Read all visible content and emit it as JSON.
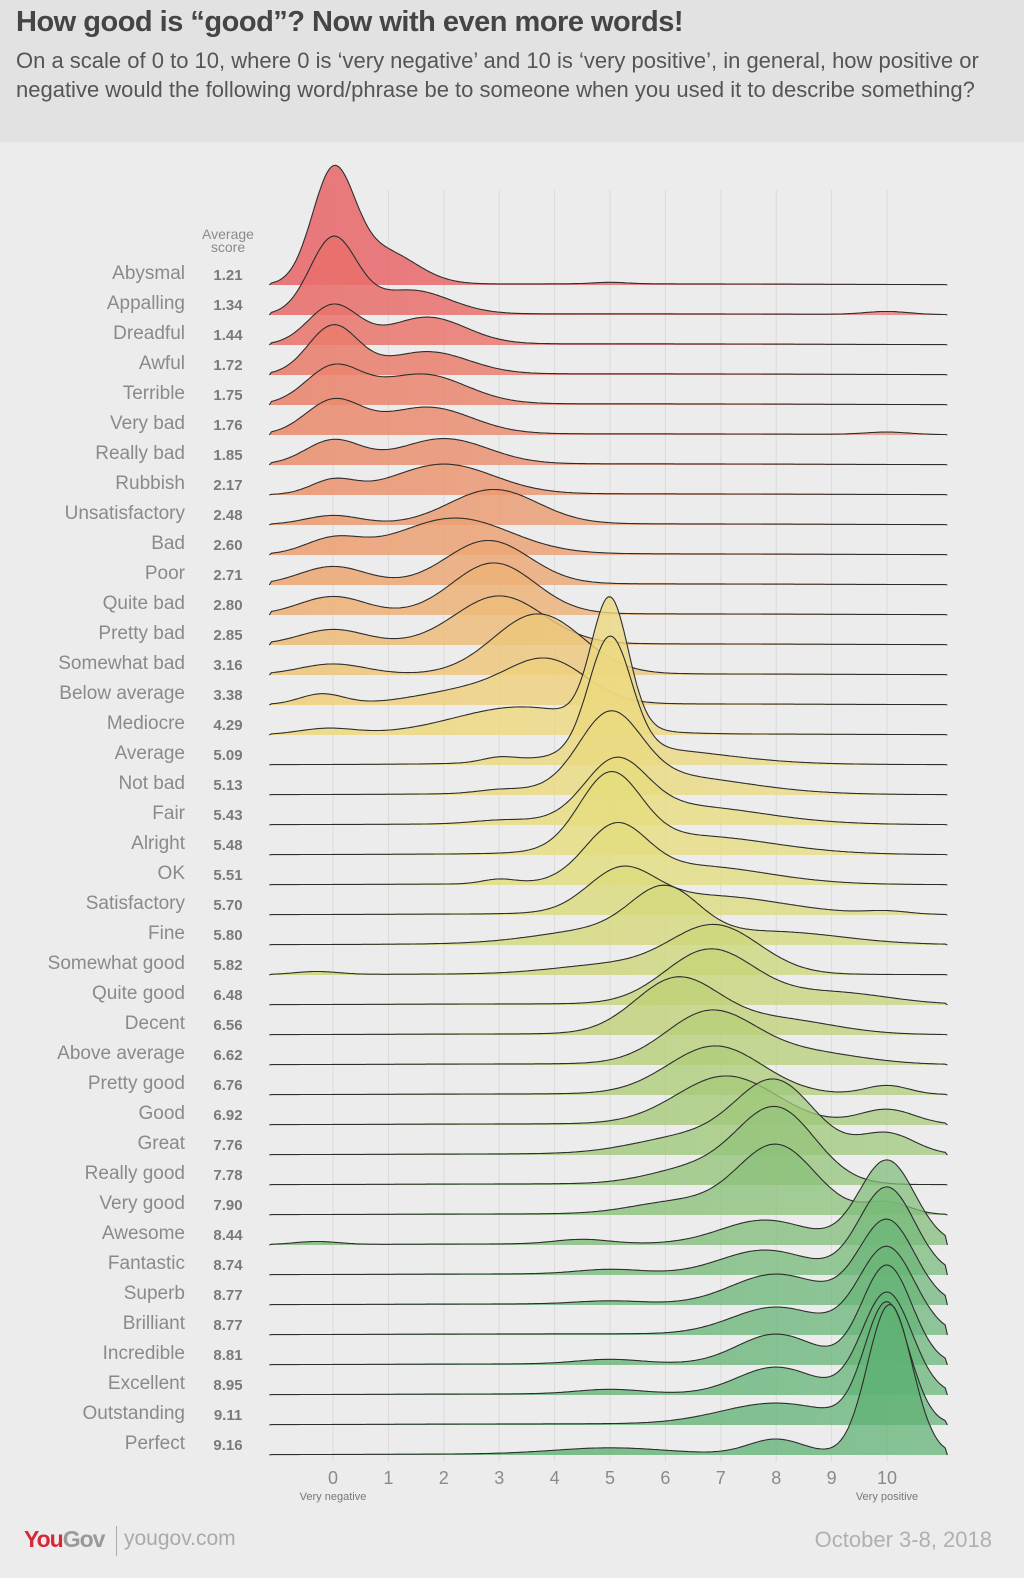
{
  "header": {
    "title": "How good is “good”? Now with even more words!",
    "subtitle": "On a scale of 0 to 10, where 0 is ‘very negative’ and 10 is ‘very positive’, in general, how positive or negative would the following word/phrase be to someone when you used it to describe something?"
  },
  "footer": {
    "logo_you": "You",
    "logo_gov": "Gov",
    "site": "yougov.com",
    "date": "October 3-8, 2018"
  },
  "chart_data": {
    "type": "ridgeline",
    "score_header": [
      "Average",
      "score"
    ],
    "x_ticks": [
      "0",
      "1",
      "2",
      "3",
      "4",
      "5",
      "6",
      "7",
      "8",
      "9",
      "10"
    ],
    "xlim": [
      -1.15,
      11.1
    ],
    "x_end_labels": {
      "low": "Very negative",
      "high": "Very positive"
    },
    "grid": true,
    "color_stops": [
      "#e8676a",
      "#ea8a6e",
      "#eca473",
      "#eed77f",
      "#e5de7e",
      "#c4d377",
      "#9cc77a",
      "#6bb679",
      "#5fb274"
    ],
    "series": [
      {
        "word": "Abysmal",
        "score": "1.21",
        "density": [
          [
            0,
            0.38,
            3.6
          ],
          [
            0.9,
            0.6,
            1.1
          ],
          [
            5,
            0.3,
            0.05
          ]
        ]
      },
      {
        "word": "Appalling",
        "score": "1.34",
        "density": [
          [
            0,
            0.42,
            2.5
          ],
          [
            1.4,
            0.7,
            0.8
          ],
          [
            10,
            0.4,
            0.1
          ]
        ]
      },
      {
        "word": "Dreadful",
        "score": "1.44",
        "density": [
          [
            0,
            0.45,
            1.3
          ],
          [
            1.7,
            0.7,
            0.9
          ]
        ]
      },
      {
        "word": "Awful",
        "score": "1.72",
        "density": [
          [
            0,
            0.45,
            1.6
          ],
          [
            1.7,
            0.75,
            0.75
          ]
        ]
      },
      {
        "word": "Terrible",
        "score": "1.75",
        "density": [
          [
            0,
            0.5,
            1.2
          ],
          [
            1.6,
            0.8,
            1.0
          ]
        ]
      },
      {
        "word": "Very bad",
        "score": "1.76",
        "density": [
          [
            0,
            0.5,
            1.1
          ],
          [
            1.7,
            0.8,
            0.9
          ],
          [
            10,
            0.4,
            0.08
          ]
        ]
      },
      {
        "word": "Really bad",
        "score": "1.85",
        "density": [
          [
            0,
            0.5,
            0.8
          ],
          [
            2.0,
            0.8,
            0.85
          ]
        ]
      },
      {
        "word": "Rubbish",
        "score": "2.17",
        "density": [
          [
            0,
            0.4,
            0.45
          ],
          [
            2.0,
            0.9,
            1.0
          ]
        ]
      },
      {
        "word": "Unsatisfactory",
        "score": "2.48",
        "density": [
          [
            0,
            0.5,
            0.3
          ],
          [
            2.9,
            0.8,
            1.15
          ]
        ]
      },
      {
        "word": "Bad",
        "score": "2.60",
        "density": [
          [
            0,
            0.5,
            0.5
          ],
          [
            2.2,
            1.0,
            1.2
          ]
        ]
      },
      {
        "word": "Poor",
        "score": "2.71",
        "density": [
          [
            0,
            0.6,
            0.6
          ],
          [
            2.8,
            0.75,
            1.45
          ]
        ]
      },
      {
        "word": "Quite bad",
        "score": "2.80",
        "density": [
          [
            0,
            0.6,
            0.6
          ],
          [
            2.9,
            0.75,
            1.7
          ]
        ]
      },
      {
        "word": "Pretty bad",
        "score": "2.85",
        "density": [
          [
            0,
            0.6,
            0.5
          ],
          [
            3.0,
            0.8,
            1.6
          ]
        ]
      },
      {
        "word": "Somewhat bad",
        "score": "3.16",
        "density": [
          [
            0,
            0.6,
            0.35
          ],
          [
            3.7,
            0.8,
            2.0
          ]
        ]
      },
      {
        "word": "Below average",
        "score": "3.38",
        "density": [
          [
            -0.2,
            0.4,
            0.35
          ],
          [
            2.6,
            1.0,
            0.5
          ],
          [
            3.9,
            0.7,
            1.3
          ]
        ]
      },
      {
        "word": "Mediocre",
        "score": "4.29",
        "density": [
          [
            -0.1,
            0.5,
            0.2
          ],
          [
            3.4,
            1.2,
            0.9
          ],
          [
            5,
            0.33,
            4.2
          ]
        ]
      },
      {
        "word": "Average",
        "score": "5.09",
        "density": [
          [
            3,
            0.3,
            0.15
          ],
          [
            5,
            0.38,
            3.8
          ],
          [
            5.6,
            1.4,
            0.5
          ]
        ]
      },
      {
        "word": "Not bad",
        "score": "5.13",
        "density": [
          [
            3,
            0.4,
            0.1
          ],
          [
            5,
            0.55,
            2.3
          ],
          [
            6,
            1.4,
            0.6
          ]
        ]
      },
      {
        "word": "Fair",
        "score": "5.43",
        "density": [
          [
            3,
            0.5,
            0.1
          ],
          [
            5.1,
            0.55,
            1.8
          ],
          [
            6.3,
            1.4,
            0.6
          ]
        ]
      },
      {
        "word": "Alright",
        "score": "5.48",
        "density": [
          [
            5,
            0.55,
            2.4
          ],
          [
            6.5,
            1.4,
            0.6
          ]
        ]
      },
      {
        "word": "OK",
        "score": "5.51",
        "density": [
          [
            3,
            0.3,
            0.15
          ],
          [
            5.1,
            0.55,
            1.7
          ],
          [
            6.5,
            1.3,
            0.6
          ]
        ]
      },
      {
        "word": "Satisfactory",
        "score": "5.70",
        "density": [
          [
            5.2,
            0.6,
            1.3
          ],
          [
            6.8,
            1.3,
            0.6
          ],
          [
            10,
            0.4,
            0.1
          ]
        ]
      },
      {
        "word": "Fine",
        "score": "5.80",
        "density": [
          [
            6.0,
            0.6,
            1.5
          ],
          [
            5,
            1.2,
            0.5
          ],
          [
            8,
            1.2,
            0.4
          ]
        ]
      },
      {
        "word": "Somewhat good",
        "score": "5.82",
        "density": [
          [
            -0.3,
            0.4,
            0.1
          ],
          [
            6.9,
            0.8,
            1.6
          ],
          [
            5,
            1,
            0.3
          ]
        ]
      },
      {
        "word": "Quite good",
        "score": "6.48",
        "density": [
          [
            6.8,
            0.8,
            1.8
          ],
          [
            9,
            1,
            0.4
          ]
        ]
      },
      {
        "word": "Decent",
        "score": "6.56",
        "density": [
          [
            6.2,
            0.75,
            1.8
          ],
          [
            8,
            1,
            0.5
          ]
        ]
      },
      {
        "word": "Above average",
        "score": "6.62",
        "density": [
          [
            6.8,
            0.8,
            1.7
          ],
          [
            8.5,
            1,
            0.4
          ]
        ]
      },
      {
        "word": "Pretty good",
        "score": "6.76",
        "density": [
          [
            6.9,
            0.85,
            1.6
          ],
          [
            10,
            0.4,
            0.3
          ]
        ]
      },
      {
        "word": "Good",
        "score": "6.92",
        "density": [
          [
            7.1,
            0.9,
            1.6
          ],
          [
            10,
            0.5,
            0.5
          ]
        ]
      },
      {
        "word": "Great",
        "score": "7.76",
        "density": [
          [
            8,
            0.7,
            2.3
          ],
          [
            6.5,
            1,
            0.6
          ],
          [
            10,
            0.5,
            0.7
          ]
        ]
      },
      {
        "word": "Really good",
        "score": "7.78",
        "density": [
          [
            8,
            0.7,
            2.5
          ],
          [
            6.5,
            0.8,
            0.5
          ]
        ]
      },
      {
        "word": "Very good",
        "score": "7.90",
        "density": [
          [
            8,
            0.7,
            2.3
          ],
          [
            6.2,
            0.8,
            0.4
          ],
          [
            10,
            0.4,
            0.4
          ]
        ]
      },
      {
        "word": "Awesome",
        "score": "8.44",
        "density": [
          [
            -0.3,
            0.4,
            0.1
          ],
          [
            4.5,
            0.5,
            0.15
          ],
          [
            7.8,
            0.8,
            0.8
          ],
          [
            10,
            0.5,
            2.8
          ]
        ]
      },
      {
        "word": "Fantastic",
        "score": "8.74",
        "density": [
          [
            5,
            0.6,
            0.15
          ],
          [
            7.8,
            0.8,
            0.8
          ],
          [
            10,
            0.5,
            2.9
          ]
        ]
      },
      {
        "word": "Superb",
        "score": "8.77",
        "density": [
          [
            5,
            0.6,
            0.1
          ],
          [
            8,
            0.8,
            1.0
          ],
          [
            10,
            0.5,
            2.8
          ]
        ]
      },
      {
        "word": "Brilliant",
        "score": "8.77",
        "density": [
          [
            8,
            0.8,
            0.9
          ],
          [
            10,
            0.5,
            2.9
          ]
        ]
      },
      {
        "word": "Incredible",
        "score": "8.81",
        "density": [
          [
            5,
            0.6,
            0.15
          ],
          [
            8,
            0.7,
            1.0
          ],
          [
            10,
            0.45,
            3.3
          ]
        ]
      },
      {
        "word": "Excellent",
        "score": "8.95",
        "density": [
          [
            5,
            0.6,
            0.15
          ],
          [
            8,
            0.7,
            0.9
          ],
          [
            10,
            0.45,
            3.4
          ]
        ]
      },
      {
        "word": "Outstanding",
        "score": "9.11",
        "density": [
          [
            8,
            1,
            0.7
          ],
          [
            10,
            0.4,
            4.0
          ]
        ]
      },
      {
        "word": "Perfect",
        "score": "9.16",
        "density": [
          [
            5,
            1,
            0.2
          ],
          [
            8,
            0.5,
            0.5
          ],
          [
            10.05,
            0.4,
            5.0
          ]
        ]
      }
    ]
  }
}
